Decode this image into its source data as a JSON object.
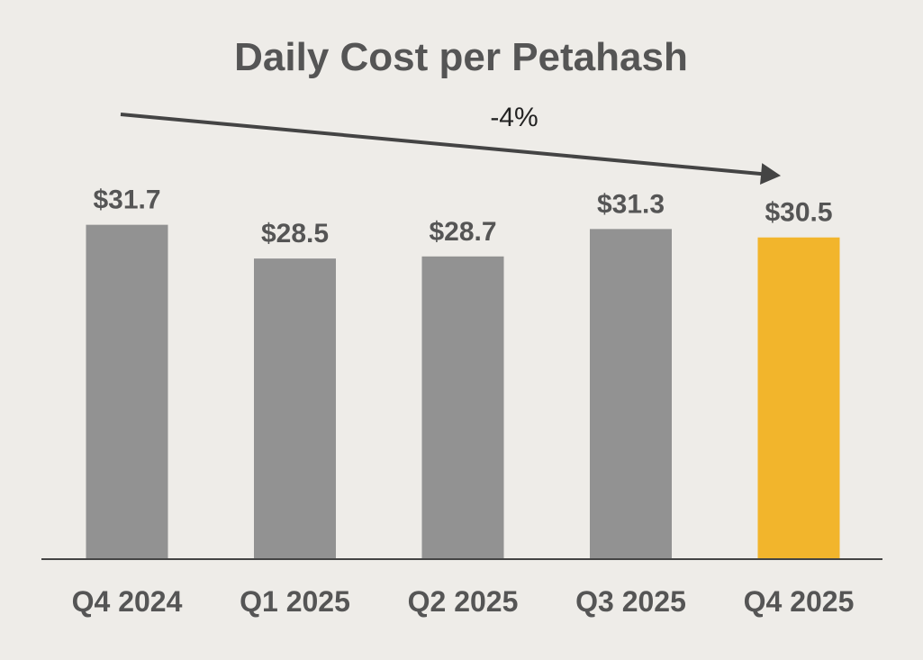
{
  "chart_data": {
    "type": "bar",
    "title": "Daily Cost per Petahash",
    "categories": [
      "Q4 2024",
      "Q1 2025",
      "Q2 2025",
      "Q3 2025",
      "Q4 2025"
    ],
    "values": [
      31.7,
      28.5,
      28.7,
      31.3,
      30.5
    ],
    "value_labels": [
      "$31.7",
      "$28.5",
      "$28.7",
      "$31.3",
      "$30.5"
    ],
    "xlabel": "",
    "ylabel": "",
    "ylim": [
      0,
      35
    ],
    "grid": false,
    "highlight_index": 4,
    "annotations": [
      {
        "type": "trend-arrow",
        "text": "-4%",
        "from_category": "Q4 2024",
        "to_category": "Q4 2025"
      }
    ],
    "colors": {
      "bar": "#929292",
      "highlight": "#F2B52C",
      "axis": "#444444",
      "arrow": "#444444"
    }
  }
}
